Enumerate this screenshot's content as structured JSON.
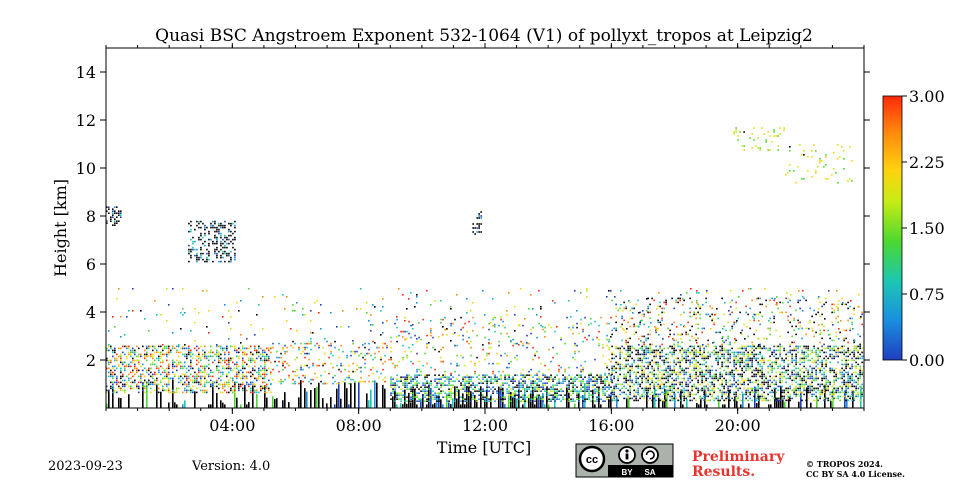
{
  "chart_data": {
    "type": "heatmap",
    "title": "Quasi BSC Angstroem Exponent 532-1064 (V1) of pollyxt_tropos at Leipzig2",
    "xlabel": "Time [UTC]",
    "ylabel": "Height [km]",
    "x_range_hours": [
      0,
      24
    ],
    "x_ticks": [
      {
        "hour": 4,
        "label": "04:00"
      },
      {
        "hour": 8,
        "label": "08:00"
      },
      {
        "hour": 12,
        "label": "12:00"
      },
      {
        "hour": 16,
        "label": "16:00"
      },
      {
        "hour": 20,
        "label": "20:00"
      }
    ],
    "ylim": [
      0,
      15
    ],
    "y_ticks": [
      {
        "value": 2,
        "label": "2"
      },
      {
        "value": 4,
        "label": "4"
      },
      {
        "value": 6,
        "label": "6"
      },
      {
        "value": 8,
        "label": "8"
      },
      {
        "value": 10,
        "label": "10"
      },
      {
        "value": 12,
        "label": "12"
      },
      {
        "value": 14,
        "label": "14"
      }
    ],
    "colorbar": {
      "range": [
        0,
        3
      ],
      "ticks": [
        {
          "value": 0,
          "label": "0.00"
        },
        {
          "value": 0.75,
          "label": "0.75"
        },
        {
          "value": 1.5,
          "label": "1.50"
        },
        {
          "value": 2.25,
          "label": "2.25"
        },
        {
          "value": 3,
          "label": "3.00"
        }
      ],
      "colors": [
        "#1f3ebf",
        "#1a8fe0",
        "#1cc7b0",
        "#4dd830",
        "#c6ec14",
        "#ffd20f",
        "#ff8a0d",
        "#ff2a0a"
      ]
    },
    "features": [
      {
        "name": "boundary layer",
        "t_start": 0,
        "t_end": 24,
        "h_bottom": 0,
        "h_top": 2.6
      },
      {
        "name": "aerosol layer",
        "t_start": 16,
        "t_end": 24,
        "h_bottom": 0.8,
        "h_top": 4.8
      },
      {
        "name": "cloud",
        "t_start": 2.6,
        "t_end": 4.1,
        "h_bottom": 6.1,
        "h_top": 7.8
      },
      {
        "name": "cloud",
        "t_start": 0,
        "t_end": 0.5,
        "h_bottom": 7.6,
        "h_top": 8.4
      },
      {
        "name": "cloud",
        "t_start": 11.6,
        "t_end": 11.9,
        "h_bottom": 7.2,
        "h_top": 8.2
      },
      {
        "name": "cirrus",
        "t_start": 19.8,
        "t_end": 23.6,
        "h_bottom": 9.5,
        "h_top": 11.7
      }
    ]
  },
  "footer": {
    "date": "2023-09-23",
    "version": "Version: 4.0",
    "license_badge": {
      "cc": "cc",
      "by": "BY",
      "sa": "SA"
    },
    "preliminary_line1": "Preliminary",
    "preliminary_line2": "Results.",
    "copyright_line1": "© TROPOS 2024.",
    "copyright_line2": "CC BY SA 4.0 License."
  }
}
